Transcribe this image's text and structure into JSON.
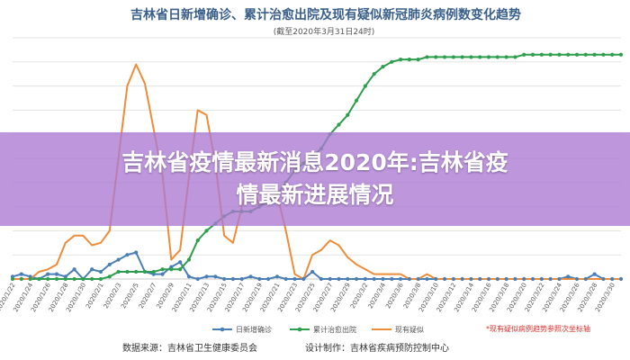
{
  "chart_data": {
    "type": "line",
    "title": "吉林省日新增确诊、累计治愈出院及现有疑似新冠肺炎病例数变化趋势",
    "subtitle": "(截至2020年3月31日24时)",
    "x": [
      "2020/1/22",
      "2020/1/23",
      "2020/1/24",
      "2020/1/25",
      "2020/1/26",
      "2020/1/27",
      "2020/1/28",
      "2020/1/29",
      "2020/1/30",
      "2020/1/31",
      "2020/2/1",
      "2020/2/2",
      "2020/2/3",
      "2020/2/4",
      "2020/2/5",
      "2020/2/6",
      "2020/2/7",
      "2020/2/8",
      "2020/2/9",
      "2020/2/10",
      "2020/2/11",
      "2020/2/12",
      "2020/2/13",
      "2020/2/14",
      "2020/2/15",
      "2020/2/16",
      "2020/2/17",
      "2020/2/18",
      "2020/2/19",
      "2020/2/20",
      "2020/2/21",
      "2020/2/22",
      "2020/2/23",
      "2020/2/24",
      "2020/2/25",
      "2020/2/26",
      "2020/2/27",
      "2020/2/28",
      "2020/2/29",
      "2020/3/1",
      "2020/3/2",
      "2020/3/3",
      "2020/3/4",
      "2020/3/5",
      "2020/3/6",
      "2020/3/7",
      "2020/3/8",
      "2020/3/9",
      "2020/3/10",
      "2020/3/11",
      "2020/3/12",
      "2020/3/13",
      "2020/3/14",
      "2020/3/15",
      "2020/3/16",
      "2020/3/17",
      "2020/3/18",
      "2020/3/19",
      "2020/3/20",
      "2020/3/21",
      "2020/3/22",
      "2020/3/23",
      "2020/3/24",
      "2020/3/25",
      "2020/3/26",
      "2020/3/27",
      "2020/3/28",
      "2020/3/29",
      "2020/3/30",
      "2020/3/31"
    ],
    "xtick_labels": [
      "2020/1/22",
      "2020/1/24",
      "2020/1/26",
      "2020/1/28",
      "2020/1/30",
      "2020/2/1",
      "2020/2/3",
      "2020/2/5",
      "2020/2/7",
      "2020/2/9",
      "2020/2/11",
      "2020/2/13",
      "2020/2/15",
      "2020/2/17",
      "2020/2/19",
      "2020/2/21",
      "2020/2/23",
      "2020/2/25",
      "2020/2/27",
      "2020/2/29",
      "2020/3/2",
      "2020/3/4",
      "2020/3/6",
      "2020/3/8",
      "2020/3/10",
      "2020/3/12",
      "2020/3/14",
      "2020/3/16",
      "2020/3/18",
      "2020/3/20",
      "2020/3/22",
      "2020/3/24",
      "2020/3/26",
      "2020/3/28",
      "2020/3/30"
    ],
    "ylim": [
      0,
      100
    ],
    "grid": true,
    "legend_position": "bottom",
    "series": [
      {
        "name": "日新增确诊",
        "color": "#4a7fb5",
        "marker": true,
        "values": [
          1,
          2,
          1,
          0,
          2,
          2,
          1,
          4,
          0,
          4,
          3,
          6,
          8,
          10,
          11,
          3,
          2,
          2,
          5,
          7,
          1,
          0,
          1,
          1,
          0,
          0,
          0,
          1,
          0,
          0,
          1,
          0,
          0,
          0,
          3,
          0,
          0,
          0,
          0,
          0,
          0,
          0,
          0,
          0,
          0,
          0,
          0,
          0,
          0,
          0,
          0,
          0,
          0,
          0,
          0,
          0,
          0,
          0,
          0,
          0,
          0,
          0,
          0,
          1,
          0,
          0,
          2,
          0,
          0,
          0
        ]
      },
      {
        "name": "累计治愈出院",
        "color": "#2e9e4f",
        "marker": true,
        "values": [
          0,
          0,
          0,
          0,
          0,
          0,
          0,
          0,
          0,
          0,
          0,
          1,
          3,
          3,
          3,
          3,
          3,
          4,
          4,
          4,
          8,
          16,
          20,
          23,
          26,
          28,
          28,
          28,
          30,
          32,
          35,
          40,
          45,
          48,
          51,
          54,
          60,
          64,
          68,
          74,
          80,
          85,
          88,
          90,
          91,
          91,
          91,
          92,
          92,
          92,
          92,
          92,
          92,
          92,
          92,
          92,
          92,
          92,
          93,
          93,
          93,
          93,
          93,
          93,
          93,
          93,
          93,
          93,
          93,
          93
        ]
      },
      {
        "name": "现有疑似",
        "color": "#ef8c3a",
        "marker": false,
        "values": [
          0,
          0,
          0,
          3,
          4,
          6,
          15,
          18,
          18,
          14,
          15,
          20,
          50,
          80,
          89,
          81,
          62,
          43,
          8,
          12,
          42,
          70,
          68,
          48,
          18,
          15,
          30,
          40,
          30,
          36,
          35,
          20,
          2,
          0,
          10,
          12,
          16,
          14,
          9,
          6,
          4,
          2,
          2,
          2,
          2,
          0,
          0,
          2,
          0,
          0,
          0,
          0,
          0,
          0,
          0,
          0,
          0,
          0,
          0,
          0,
          0,
          0,
          0,
          0,
          0,
          0,
          0,
          0,
          0,
          0
        ]
      }
    ]
  },
  "banner": {
    "line1": "吉林省疫情最新消息2020年:吉林省疫",
    "line2": "情最新进展情况"
  },
  "footer": {
    "source": "数据来源：吉林省卫生健康委员会",
    "design": "设计制作：吉林省疾病预防控制中心",
    "note": "*现有疑似病例趋势参照次坐标轴"
  }
}
